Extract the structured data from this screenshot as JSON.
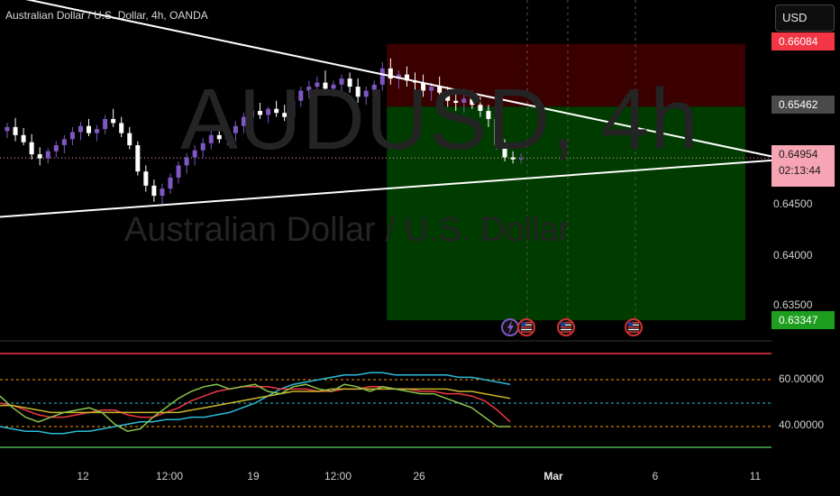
{
  "header": {
    "symbol_title": "Australian Dollar / U.S. Dollar, 4h, OANDA",
    "currency_button": "USD"
  },
  "watermark": {
    "symbol": "AUDUSD, 4h",
    "name": "Australian Dollar / U.S. Dollar"
  },
  "price_axis": {
    "labels": [
      {
        "text": "0.64500",
        "value": 0.645
      },
      {
        "text": "0.64000",
        "value": 0.64
      },
      {
        "text": "0.63500",
        "value": 0.635
      }
    ],
    "tags": {
      "target_top": {
        "text": "0.66084",
        "color": "#f23645"
      },
      "entry": {
        "text": "0.65462",
        "color": "#4a4a4a"
      },
      "current": {
        "text": "0.64954",
        "countdown": "02:13:44",
        "color": "#f7a5b4"
      },
      "target_bottom": {
        "text": "0.63347",
        "color": "#1e9e1e"
      }
    }
  },
  "time_axis": {
    "labels": [
      {
        "text": "12",
        "bold": false
      },
      {
        "text": "12:00",
        "bold": false
      },
      {
        "text": "19",
        "bold": false
      },
      {
        "text": "12:00",
        "bold": false
      },
      {
        "text": "26",
        "bold": false
      },
      {
        "text": "Mar",
        "bold": true
      },
      {
        "text": "6",
        "bold": false
      },
      {
        "text": "11",
        "bold": false
      }
    ]
  },
  "indicator": {
    "levels": [
      {
        "text": "60.00000",
        "value": 60
      },
      {
        "text": "40.00000",
        "value": 40
      }
    ]
  },
  "chart_data": {
    "type": "candlestick",
    "symbol": "AUDUSD",
    "interval": "4h",
    "colors": {
      "up": "#7e57c2",
      "down": "#ffffff",
      "stop_zone": "#3a0000",
      "profit_zone": "#003b00"
    },
    "candles_ohlc_from_dense_start": [
      [
        0.6522,
        0.653,
        0.6515,
        0.6526
      ],
      [
        0.6526,
        0.6535,
        0.6512,
        0.6518
      ],
      [
        0.6518,
        0.6525,
        0.6508,
        0.6511
      ],
      [
        0.6511,
        0.6519,
        0.6494,
        0.6499
      ],
      [
        0.6499,
        0.6506,
        0.6488,
        0.6495
      ],
      [
        0.6495,
        0.6505,
        0.649,
        0.6502
      ],
      [
        0.6502,
        0.6512,
        0.6496,
        0.6508
      ],
      [
        0.6508,
        0.6518,
        0.65,
        0.6514
      ],
      [
        0.6514,
        0.6526,
        0.6508,
        0.6521
      ],
      [
        0.6521,
        0.6531,
        0.6513,
        0.6527
      ],
      [
        0.6527,
        0.6534,
        0.6517,
        0.652
      ],
      [
        0.652,
        0.6528,
        0.6512,
        0.6524
      ],
      [
        0.6524,
        0.6538,
        0.6519,
        0.6534
      ],
      [
        0.6534,
        0.6544,
        0.6526,
        0.653
      ],
      [
        0.653,
        0.6536,
        0.6516,
        0.652
      ],
      [
        0.652,
        0.6526,
        0.6504,
        0.6508
      ],
      [
        0.6508,
        0.6512,
        0.6478,
        0.6482
      ],
      [
        0.6482,
        0.6488,
        0.6462,
        0.6468
      ],
      [
        0.6468,
        0.6474,
        0.6452,
        0.6458
      ],
      [
        0.6458,
        0.647,
        0.6448,
        0.6465
      ],
      [
        0.6465,
        0.648,
        0.646,
        0.6476
      ],
      [
        0.6476,
        0.6492,
        0.647,
        0.6488
      ],
      [
        0.6488,
        0.65,
        0.648,
        0.6496
      ],
      [
        0.6496,
        0.6508,
        0.6488,
        0.6503
      ],
      [
        0.6503,
        0.6515,
        0.6496,
        0.651
      ],
      [
        0.651,
        0.6522,
        0.6504,
        0.6518
      ],
      [
        0.6518,
        0.6528,
        0.651,
        0.6514
      ],
      [
        0.6514,
        0.6524,
        0.6508,
        0.652
      ],
      [
        0.652,
        0.6532,
        0.6512,
        0.6527
      ],
      [
        0.6527,
        0.654,
        0.652,
        0.6536
      ],
      [
        0.6536,
        0.6546,
        0.6528,
        0.6542
      ],
      [
        0.6542,
        0.655,
        0.6534,
        0.6538
      ],
      [
        0.6538,
        0.6546,
        0.653,
        0.6544
      ],
      [
        0.6544,
        0.6552,
        0.6536,
        0.654
      ],
      [
        0.654,
        0.6548,
        0.6532,
        0.6536
      ],
      [
        0.6536,
        0.6556,
        0.653,
        0.6552
      ],
      [
        0.6552,
        0.6566,
        0.6546,
        0.6562
      ],
      [
        0.6562,
        0.6572,
        0.6554,
        0.6566
      ],
      [
        0.6566,
        0.6576,
        0.6558,
        0.657
      ],
      [
        0.657,
        0.6582,
        0.656,
        0.6564
      ],
      [
        0.6564,
        0.6572,
        0.6556,
        0.6568
      ],
      [
        0.6568,
        0.6578,
        0.6558,
        0.6574
      ],
      [
        0.6574,
        0.658,
        0.656,
        0.6566
      ],
      [
        0.6566,
        0.6574,
        0.655,
        0.6556
      ],
      [
        0.6556,
        0.6566,
        0.6548,
        0.6562
      ],
      [
        0.6562,
        0.6572,
        0.6554,
        0.6568
      ],
      [
        0.6568,
        0.659,
        0.6562,
        0.6584
      ],
      [
        0.6584,
        0.6594,
        0.6568,
        0.6574
      ],
      [
        0.6574,
        0.6582,
        0.6564,
        0.6578
      ],
      [
        0.6578,
        0.6586,
        0.6566,
        0.6572
      ],
      [
        0.6572,
        0.658,
        0.6562,
        0.657
      ],
      [
        0.657,
        0.6578,
        0.6556,
        0.6562
      ],
      [
        0.6562,
        0.657,
        0.6552,
        0.6566
      ],
      [
        0.6566,
        0.6576,
        0.6558,
        0.656
      ],
      [
        0.656,
        0.6566,
        0.6546,
        0.6552
      ],
      [
        0.6552,
        0.656,
        0.6542,
        0.655
      ],
      [
        0.655,
        0.6558,
        0.654,
        0.6554
      ],
      [
        0.6554,
        0.6562,
        0.6544,
        0.6548
      ],
      [
        0.6548,
        0.6556,
        0.6536,
        0.6542
      ],
      [
        0.6542,
        0.6548,
        0.6526,
        0.6534
      ],
      [
        0.6534,
        0.654,
        0.6504,
        0.6508
      ],
      [
        0.6508,
        0.6514,
        0.6492,
        0.6496
      ],
      [
        0.6496,
        0.6502,
        0.649,
        0.6494
      ],
      [
        0.6494,
        0.65,
        0.649,
        0.6495
      ]
    ],
    "lines": [
      {
        "name": "upper-trendline",
        "from": {
          "bar": -12,
          "price": 0.6658
        },
        "to": {
          "bar": 152,
          "price": 0.6497
        }
      },
      {
        "name": "lower-trendline",
        "from": {
          "bar": -12,
          "price": 0.6437
        },
        "to": {
          "bar": 152,
          "price": 0.6493
        }
      }
    ],
    "position_zones": [
      {
        "name": "stop-zone",
        "from_bar": 72,
        "to_bar": 152,
        "top": 0.66084,
        "bottom": 0.65462
      },
      {
        "name": "profit-zone",
        "from_bar": 72,
        "to_bar": 152,
        "top": 0.65462,
        "bottom": 0.63347
      }
    ],
    "indicator_series": [
      {
        "color": "#2bbbd8",
        "values": [
          40,
          39,
          38,
          38,
          37,
          37,
          38,
          38,
          39,
          40,
          41,
          42,
          42,
          43,
          43,
          44,
          44,
          45,
          46,
          48,
          50,
          53,
          56,
          58,
          59,
          60,
          61,
          62,
          62,
          63,
          63,
          62,
          62,
          62,
          62,
          62,
          61,
          61,
          60,
          59,
          58
        ]
      },
      {
        "color": "#f23645",
        "values": [
          50,
          49,
          47,
          45,
          44,
          44,
          45,
          46,
          47,
          47,
          45,
          44,
          44,
          46,
          48,
          51,
          53,
          55,
          56,
          57,
          57,
          57,
          56,
          56,
          56,
          55,
          55,
          56,
          56,
          57,
          57,
          56,
          56,
          55,
          55,
          54,
          54,
          53,
          51,
          47,
          42
        ]
      },
      {
        "color": "#c9b52a",
        "values": [
          49,
          49,
          48,
          47,
          46,
          46,
          46,
          46,
          46,
          46,
          46,
          46,
          46,
          46,
          46,
          47,
          48,
          49,
          50,
          51,
          52,
          53,
          54,
          55,
          55,
          55,
          56,
          56,
          56,
          56,
          56,
          56,
          56,
          56,
          56,
          56,
          55,
          55,
          54,
          53,
          52
        ]
      },
      {
        "color": "#8bc34a",
        "values": [
          53,
          48,
          44,
          42,
          44,
          46,
          47,
          48,
          46,
          41,
          38,
          39,
          44,
          48,
          52,
          55,
          57,
          58,
          56,
          57,
          58,
          55,
          54,
          57,
          58,
          56,
          55,
          58,
          57,
          55,
          57,
          56,
          55,
          54,
          54,
          52,
          50,
          48,
          44,
          40,
          40
        ]
      }
    ]
  }
}
